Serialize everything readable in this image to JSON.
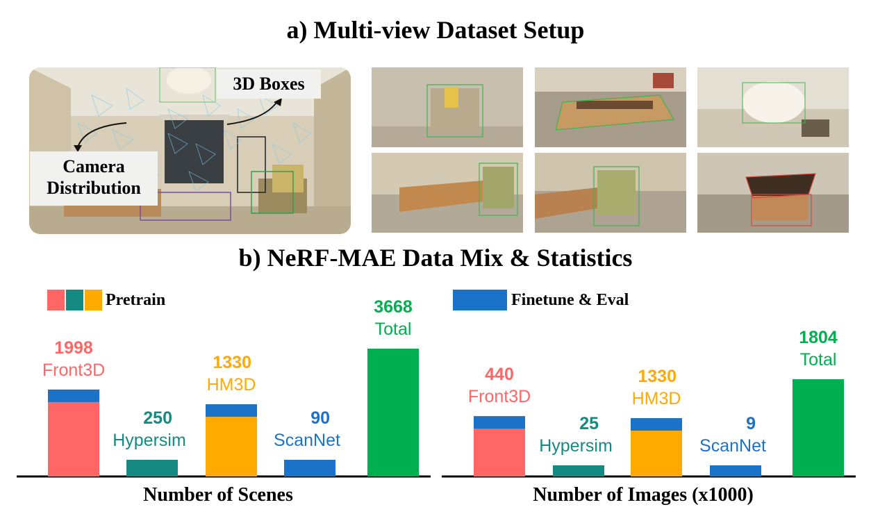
{
  "figure": {
    "title_a": "a) Multi-view Dataset Setup",
    "title_b": "b) NeRF-MAE Data Mix & Statistics",
    "callouts": {
      "boxes": "3D Boxes",
      "camera_line1": "Camera",
      "camera_line2": "Distribution"
    }
  },
  "legend": {
    "pretrain": "Pretrain",
    "finetune": "Finetune & Eval"
  },
  "colors": {
    "front3d": "#ff6666",
    "hypersim": "#148a82",
    "hm3d": "#ffaa00",
    "scannet": "#1a73c8",
    "total": "#00b050",
    "finetune": "#1a73c8"
  },
  "chart_data": [
    {
      "type": "bar",
      "xlabel": "Number of Scenes",
      "ylabel": "",
      "ylim": [
        0,
        3668
      ],
      "categories": [
        "Front3D",
        "Hypersim",
        "HM3D",
        "ScanNet",
        "Total"
      ],
      "values": [
        1998,
        250,
        1330,
        90,
        3668
      ],
      "value_labels": [
        "1998",
        "250",
        "1330",
        "90",
        "3668"
      ],
      "finetune_segment": [
        true,
        false,
        true,
        true,
        false
      ]
    },
    {
      "type": "bar",
      "xlabel": "Number of Images (x1000)",
      "ylabel": "",
      "ylim": [
        0,
        1804
      ],
      "categories": [
        "Front3D",
        "Hypersim",
        "HM3D",
        "ScanNet",
        "Total"
      ],
      "values": [
        440,
        25,
        1330,
        9,
        1804
      ],
      "value_labels": [
        "440",
        "25",
        "1330",
        "9",
        "1804"
      ],
      "finetune_segment": [
        true,
        false,
        true,
        true,
        false
      ]
    }
  ]
}
